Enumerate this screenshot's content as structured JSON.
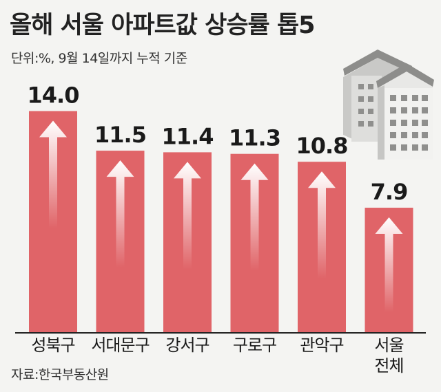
{
  "title": "올해 서울 아파트값 상승률 톱5",
  "subtitle": "단위:%, 9월 14일까지 누적 기준",
  "source": "자료:한국부동산원",
  "colors": {
    "bar": "#e06468",
    "baseline": "#222222",
    "arrow": "#ffffff"
  },
  "icon": "apartment-building-icon",
  "chart_data": {
    "type": "bar",
    "categories": [
      "성북구",
      "서대문구",
      "강서구",
      "구로구",
      "관악구",
      "서울 전체"
    ],
    "category_lines": [
      [
        "성북구"
      ],
      [
        "서대문구"
      ],
      [
        "강서구"
      ],
      [
        "구로구"
      ],
      [
        "관악구"
      ],
      [
        "서울",
        "전체"
      ]
    ],
    "values": [
      14.0,
      11.5,
      11.4,
      11.3,
      10.8,
      7.9
    ],
    "value_labels": [
      "14.0",
      "11.5",
      "11.4",
      "11.3",
      "10.8",
      "7.9"
    ],
    "unit": "%",
    "ylim": [
      0,
      14.5
    ],
    "grid": false,
    "legend": "none"
  }
}
